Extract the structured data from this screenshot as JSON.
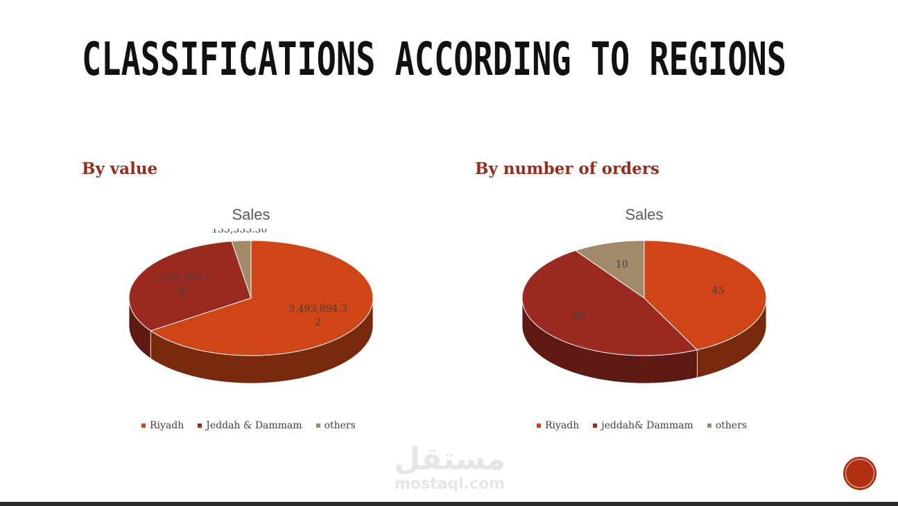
{
  "title": "CLASSIFICATIONS ACCORDING TO REGIONS",
  "colors": {
    "riyadh": "#d04516",
    "jeddah": "#9a2a20",
    "others": "#a08a6a",
    "heading": "#9c2a1a"
  },
  "watermark": {
    "arabic": "مستقل",
    "latin": "mostaql.com"
  },
  "chart_data": [
    {
      "type": "pie",
      "heading": "By value",
      "title": "Sales",
      "categories": [
        "Riyadh",
        "Jeddah & Dammam",
        "others"
      ],
      "values": [
        3493894.32,
        1715297.16,
        135535.3
      ],
      "labels": [
        "3,493,894.32",
        "1,715,297.16",
        "135,535.30"
      ],
      "legend": "bottom",
      "style": "3d"
    },
    {
      "type": "pie",
      "heading": "By number of orders",
      "title": "Sales",
      "categories": [
        "Riyadh",
        "jeddah& Dammam",
        "others"
      ],
      "values": [
        45,
        50,
        10
      ],
      "labels": [
        "45",
        "50",
        "10"
      ],
      "legend": "bottom",
      "style": "3d"
    }
  ]
}
